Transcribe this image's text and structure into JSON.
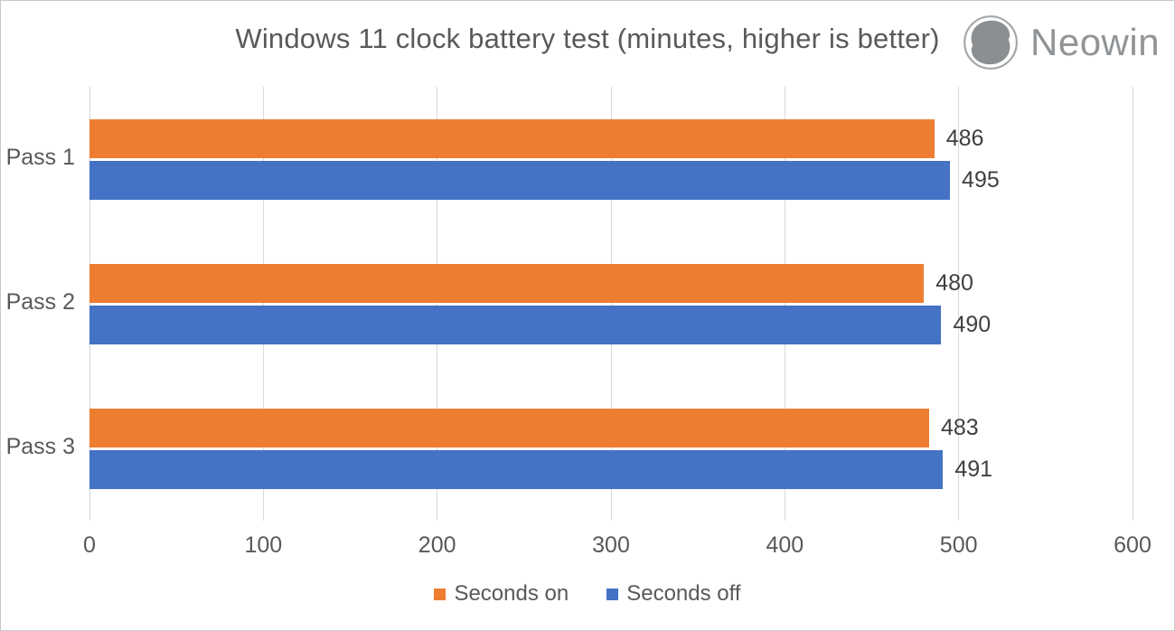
{
  "title": {
    "text": "Windows 11 clock battery test (minutes, higher is better)",
    "color": "#595959"
  },
  "logo": {
    "text": "Neowin",
    "mark": "neowin-circle-mark",
    "text_color": "#909497",
    "mark_color": "#8b8f92",
    "ring_color": "#a3a7aa"
  },
  "chart_data": {
    "type": "bar",
    "orientation": "horizontal",
    "title": "Windows 11 clock battery test (minutes, higher is better)",
    "categories": [
      "Pass 1",
      "Pass 2",
      "Pass 3"
    ],
    "series": [
      {
        "name": "Seconds on",
        "color": "#ED7D31",
        "values": [
          486,
          480,
          483
        ]
      },
      {
        "name": "Seconds off",
        "color": "#4472C4",
        "values": [
          495,
          490,
          491
        ]
      }
    ],
    "xlim": [
      0,
      600
    ],
    "xticks": [
      0,
      100,
      200,
      300,
      400,
      500,
      600
    ],
    "grid": true,
    "gridline_color": "#d9d9d9",
    "axis_label_color": "#595959",
    "value_label_color": "#404040",
    "value_labels": true,
    "legend_position": "bottom",
    "xlabel": "",
    "ylabel": ""
  }
}
